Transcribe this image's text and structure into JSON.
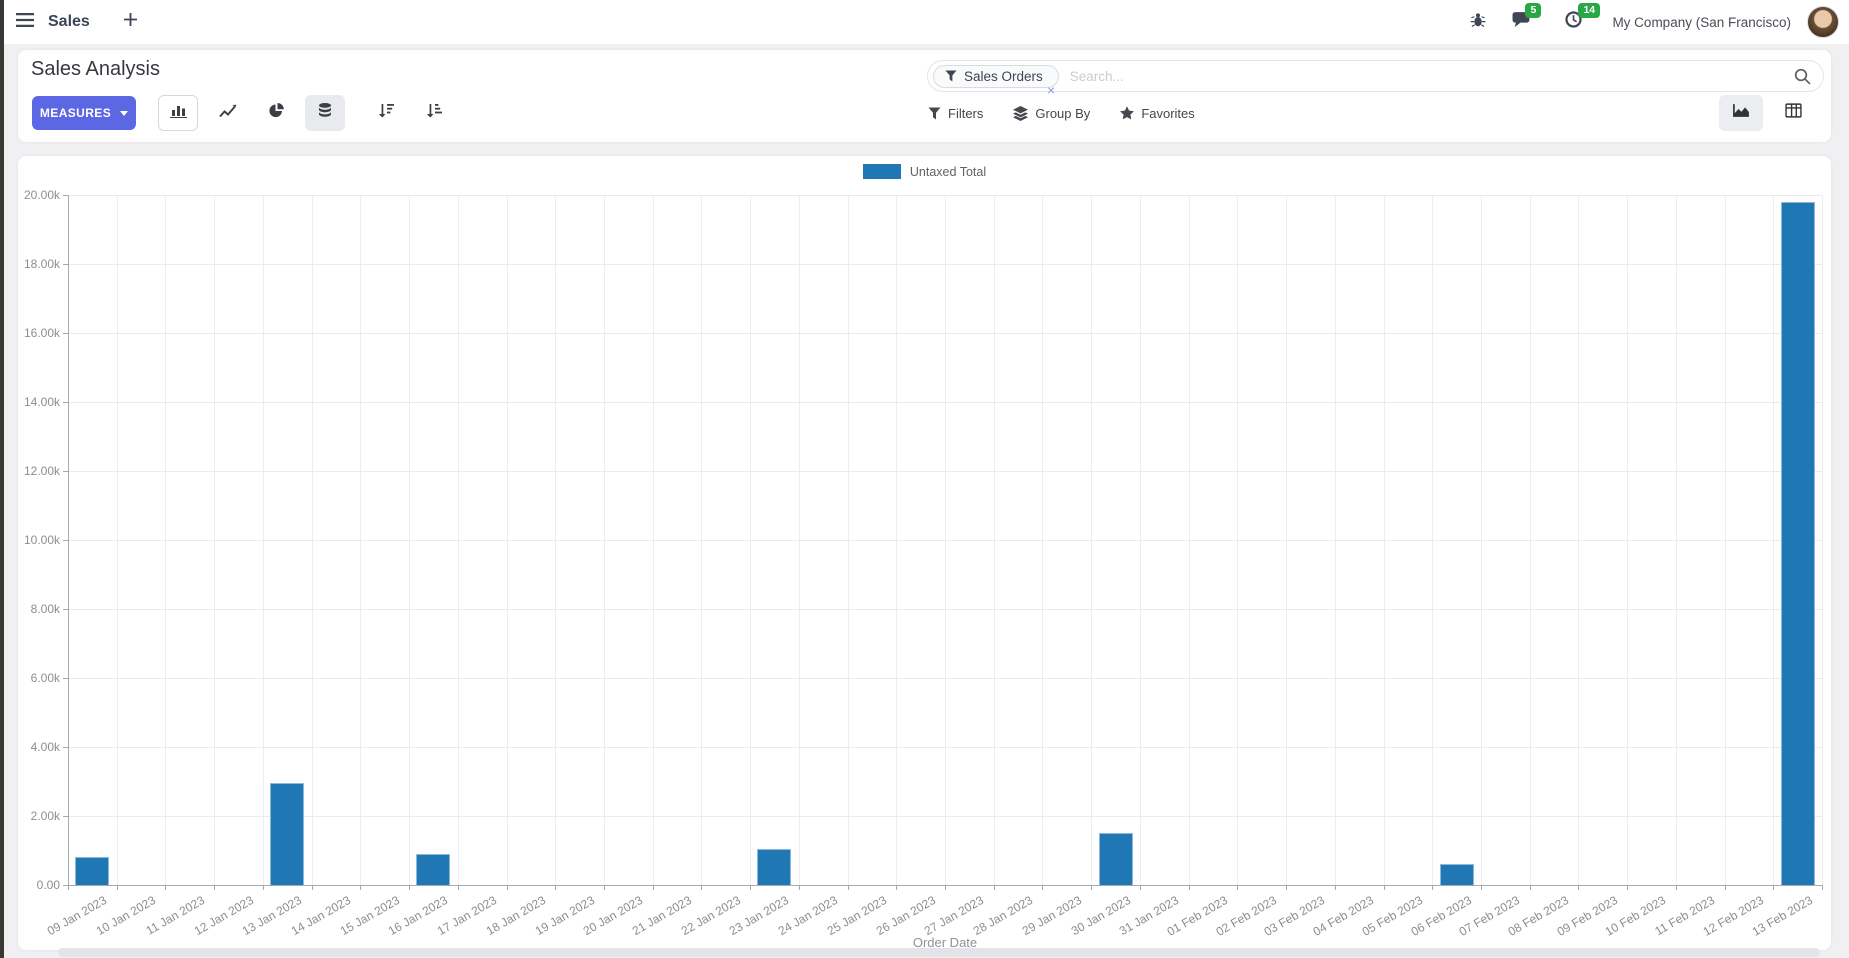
{
  "navbar": {
    "app_name": "Sales",
    "message_badge": "5",
    "activity_badge": "14",
    "company": "My Company (San Francisco)"
  },
  "control_panel": {
    "title": "Sales Analysis",
    "measures_label": "MEASURES",
    "search": {
      "facet_label": "Sales Orders",
      "placeholder": "Search...",
      "remove_symbol": "×"
    },
    "filter_buttons": [
      {
        "label": "Filters"
      },
      {
        "label": "Group By"
      },
      {
        "label": "Favorites"
      }
    ]
  },
  "chart_data": {
    "type": "bar",
    "title": "",
    "categories": [
      "09 Jan 2023",
      "10 Jan 2023",
      "11 Jan 2023",
      "12 Jan 2023",
      "13 Jan 2023",
      "14 Jan 2023",
      "15 Jan 2023",
      "16 Jan 2023",
      "17 Jan 2023",
      "18 Jan 2023",
      "19 Jan 2023",
      "20 Jan 2023",
      "21 Jan 2023",
      "22 Jan 2023",
      "23 Jan 2023",
      "24 Jan 2023",
      "25 Jan 2023",
      "26 Jan 2023",
      "27 Jan 2023",
      "28 Jan 2023",
      "29 Jan 2023",
      "30 Jan 2023",
      "31 Jan 2023",
      "01 Feb 2023",
      "02 Feb 2023",
      "03 Feb 2023",
      "04 Feb 2023",
      "05 Feb 2023",
      "06 Feb 2023",
      "07 Feb 2023",
      "08 Feb 2023",
      "09 Feb 2023",
      "10 Feb 2023",
      "11 Feb 2023",
      "12 Feb 2023",
      "13 Feb 2023"
    ],
    "series": [
      {
        "name": "Untaxed Total",
        "values": [
          800,
          0,
          0,
          0,
          2950,
          0,
          0,
          900,
          0,
          0,
          0,
          0,
          0,
          0,
          1050,
          0,
          0,
          0,
          0,
          0,
          0,
          1500,
          0,
          0,
          0,
          0,
          0,
          0,
          620,
          0,
          0,
          0,
          0,
          0,
          0,
          19800
        ]
      }
    ],
    "xlabel": "Order Date",
    "ylabel": "",
    "ylim": [
      0,
      20000
    ],
    "ytick_labels": [
      "0.00",
      "2.00k",
      "4.00k",
      "6.00k",
      "8.00k",
      "10.00k",
      "12.00k",
      "14.00k",
      "16.00k",
      "18.00k",
      "20.00k"
    ],
    "grid": true,
    "legend_position": "top",
    "bar_color": "#1f77b4"
  },
  "colors": {
    "primary_button": "#5b67e3",
    "badge_green": "#28a745",
    "bar_blue": "#1f77b4"
  }
}
